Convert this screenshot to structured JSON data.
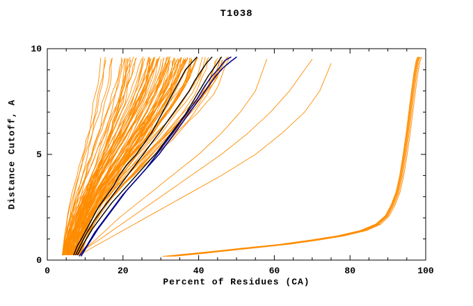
{
  "chart_data": {
    "type": "line",
    "title": "T1038",
    "xlabel": "Percent of Residues (CA)",
    "ylabel": "Distance Cutoff, A",
    "xlim": [
      0,
      100
    ],
    "ylim": [
      0,
      10
    ],
    "x_major_ticks": [
      0,
      20,
      40,
      60,
      80,
      100
    ],
    "x_tick_labels": [
      "0",
      "20",
      "40",
      "60",
      "80",
      "100"
    ],
    "x_minor_step": 5,
    "y_major_ticks": [
      0,
      5,
      10
    ],
    "y_tick_labels": [
      "0",
      "5",
      "10"
    ],
    "y_minor_step": 1,
    "grid": false,
    "legend": "none",
    "colors": {
      "models": "#ff8c00",
      "highlight": "#000000",
      "reference": "#00008b",
      "frame": "#000000"
    },
    "orange_bundle": {
      "count": 92,
      "seed": 7,
      "bottom_x_range": [
        4,
        9
      ],
      "top_x_range": [
        10,
        55
      ],
      "y_start": 0.25,
      "y_end": 9.55
    },
    "black_series": [
      {
        "name": "highlight-model-1",
        "points": [
          [
            7,
            0.25
          ],
          [
            8,
            0.7
          ],
          [
            9,
            1.0
          ],
          [
            10.5,
            1.5
          ],
          [
            12,
            2.0
          ],
          [
            13.5,
            2.5
          ],
          [
            15.5,
            3.0
          ],
          [
            17.5,
            3.5
          ],
          [
            19,
            4.0
          ],
          [
            21,
            4.5
          ],
          [
            23.5,
            5.0
          ],
          [
            25.5,
            5.5
          ],
          [
            27.5,
            6.0
          ],
          [
            29,
            6.5
          ],
          [
            30.5,
            7.0
          ],
          [
            32,
            7.5
          ],
          [
            33.5,
            8.0
          ],
          [
            35,
            8.5
          ],
          [
            36.5,
            9.0
          ],
          [
            38,
            9.3
          ],
          [
            39.5,
            9.6
          ]
        ]
      },
      {
        "name": "highlight-model-2",
        "points": [
          [
            7.5,
            0.25
          ],
          [
            9,
            0.8
          ],
          [
            10.5,
            1.3
          ],
          [
            12.5,
            1.9
          ],
          [
            14.5,
            2.4
          ],
          [
            17,
            3.0
          ],
          [
            19.5,
            3.6
          ],
          [
            22,
            4.2
          ],
          [
            24.5,
            4.8
          ],
          [
            27,
            5.4
          ],
          [
            29.5,
            6.0
          ],
          [
            31.5,
            6.5
          ],
          [
            33.5,
            7.0
          ],
          [
            35.5,
            7.5
          ],
          [
            37.5,
            8.0
          ],
          [
            39,
            8.5
          ],
          [
            40.5,
            8.9
          ],
          [
            42,
            9.3
          ],
          [
            43.5,
            9.6
          ]
        ]
      },
      {
        "name": "highlight-model-3",
        "points": [
          [
            8,
            0.25
          ],
          [
            10,
            0.9
          ],
          [
            12,
            1.5
          ],
          [
            14.5,
            2.1
          ],
          [
            17,
            2.7
          ],
          [
            20,
            3.3
          ],
          [
            23,
            3.9
          ],
          [
            26,
            4.5
          ],
          [
            29,
            5.1
          ],
          [
            31.5,
            5.7
          ],
          [
            34,
            6.3
          ],
          [
            36.5,
            6.9
          ],
          [
            38.5,
            7.5
          ],
          [
            40.5,
            8.1
          ],
          [
            42.5,
            8.7
          ],
          [
            44.5,
            9.2
          ],
          [
            46,
            9.6
          ]
        ]
      }
    ],
    "navy_series": [
      {
        "name": "reference-model-1",
        "points": [
          [
            9,
            0.2
          ],
          [
            11,
            0.8
          ],
          [
            13.5,
            1.5
          ],
          [
            16,
            2.1
          ],
          [
            18.5,
            2.7
          ],
          [
            21,
            3.3
          ],
          [
            24,
            3.9
          ],
          [
            27,
            4.5
          ],
          [
            29.5,
            5.0
          ],
          [
            32,
            5.6
          ],
          [
            34.5,
            6.2
          ],
          [
            36.5,
            6.7
          ],
          [
            38.5,
            7.2
          ],
          [
            40.5,
            7.7
          ],
          [
            42.5,
            8.2
          ],
          [
            44.5,
            8.7
          ],
          [
            46.5,
            9.1
          ],
          [
            48.5,
            9.4
          ],
          [
            50,
            9.6
          ]
        ]
      },
      {
        "name": "reference-model-2",
        "points": [
          [
            8.5,
            0.2
          ],
          [
            10.5,
            0.7
          ],
          [
            12.5,
            1.3
          ],
          [
            15,
            1.9
          ],
          [
            17.5,
            2.5
          ],
          [
            20,
            3.1
          ],
          [
            23,
            3.7
          ],
          [
            26,
            4.3
          ],
          [
            28.5,
            4.9
          ],
          [
            31,
            5.5
          ],
          [
            33.5,
            6.1
          ],
          [
            35.5,
            6.6
          ],
          [
            37.5,
            7.1
          ],
          [
            39.5,
            7.6
          ],
          [
            41.5,
            8.2
          ],
          [
            43.5,
            8.7
          ],
          [
            45.5,
            9.1
          ],
          [
            47,
            9.45
          ],
          [
            48.5,
            9.6
          ]
        ]
      }
    ],
    "right_outliers": {
      "base_points": [
        [
          31,
          0.18
        ],
        [
          38,
          0.3
        ],
        [
          46,
          0.45
        ],
        [
          54,
          0.6
        ],
        [
          62,
          0.75
        ],
        [
          70,
          0.95
        ],
        [
          77,
          1.15
        ],
        [
          83,
          1.4
        ],
        [
          87,
          1.7
        ],
        [
          89.5,
          2.1
        ],
        [
          91,
          2.6
        ],
        [
          92.3,
          3.2
        ],
        [
          93.3,
          4.0
        ],
        [
          94.2,
          5.0
        ],
        [
          95,
          6.0
        ],
        [
          95.7,
          7.0
        ],
        [
          96.4,
          8.0
        ],
        [
          97,
          8.8
        ],
        [
          97.6,
          9.4
        ],
        [
          98,
          9.6
        ]
      ],
      "offsets": [
        -0.5,
        0,
        0.5,
        1.0,
        1.7,
        2.6
      ]
    },
    "stragglers": [
      {
        "points": [
          [
            8,
            0.3
          ],
          [
            14,
            1
          ],
          [
            22,
            2
          ],
          [
            30,
            3
          ],
          [
            38,
            4
          ],
          [
            46,
            5
          ],
          [
            53,
            6
          ],
          [
            59,
            7
          ],
          [
            64,
            8
          ],
          [
            68,
            9
          ],
          [
            70,
            9.5
          ]
        ]
      },
      {
        "points": [
          [
            9,
            0.3
          ],
          [
            16,
            1
          ],
          [
            26,
            2
          ],
          [
            36,
            3
          ],
          [
            46,
            4
          ],
          [
            55,
            5
          ],
          [
            62,
            6
          ],
          [
            68,
            7
          ],
          [
            72,
            8
          ],
          [
            75,
            9.3
          ]
        ]
      },
      {
        "points": [
          [
            8,
            0.25
          ],
          [
            13,
            1
          ],
          [
            19,
            2
          ],
          [
            26,
            3
          ],
          [
            33,
            4
          ],
          [
            40,
            5
          ],
          [
            46,
            6
          ],
          [
            51,
            7
          ],
          [
            55,
            8
          ],
          [
            58,
            9.5
          ]
        ]
      }
    ]
  }
}
